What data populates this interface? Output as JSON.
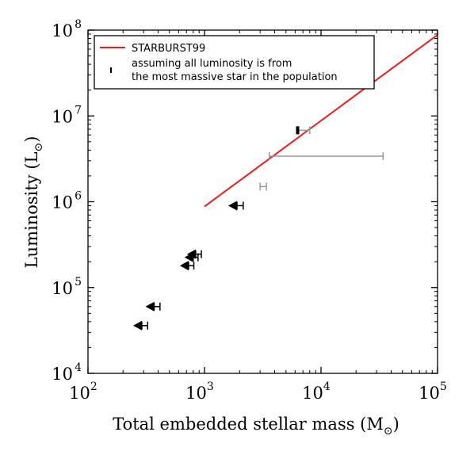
{
  "chart_data": {
    "type": "scatter",
    "title": "",
    "xlabel": "Total embedded stellar mass (M",
    "xlabel_sub": "⊙",
    "xlabel_close": ")",
    "ylabel": "Luminosity (L",
    "ylabel_sub": "⊙",
    "ylabel_close": ")",
    "xscale": "log",
    "yscale": "log",
    "xlim": [
      100,
      100000
    ],
    "ylim": [
      10000,
      100000000
    ],
    "grid": false,
    "legend_position": "top-left",
    "x_ticks": [
      {
        "value": 100,
        "base": "10",
        "exp": "2"
      },
      {
        "value": 1000,
        "base": "10",
        "exp": "3"
      },
      {
        "value": 10000,
        "base": "10",
        "exp": "4"
      },
      {
        "value": 100000,
        "base": "10",
        "exp": "5"
      }
    ],
    "y_ticks": [
      {
        "value": 10000,
        "base": "10",
        "exp": "4"
      },
      {
        "value": 100000,
        "base": "10",
        "exp": "5"
      },
      {
        "value": 1000000,
        "base": "10",
        "exp": "6"
      },
      {
        "value": 10000000,
        "base": "10",
        "exp": "7"
      },
      {
        "value": 100000000,
        "base": "10",
        "exp": "8"
      }
    ],
    "series": [
      {
        "name": "STARBURST99",
        "kind": "line",
        "color": "#ee1c1c",
        "x": [
          1000,
          100000
        ],
        "y": [
          880000,
          88000000
        ]
      },
      {
        "name": "assuming all luminosity is from\n the most massive star in the population",
        "kind": "errorbar",
        "color": "#000000",
        "points": [
          {
            "x": 290,
            "y": 36000,
            "xerr_low": 0,
            "xerr_high": 35,
            "marker": "left-arrow"
          },
          {
            "x": 370,
            "y": 60000,
            "xerr_low": 0,
            "xerr_high": 45,
            "marker": "left-arrow"
          },
          {
            "x": 730,
            "y": 180000,
            "xerr_low": 0,
            "xerr_high": 80,
            "marker": "left-arrow"
          },
          {
            "x": 800,
            "y": 225000,
            "xerr_low": 0,
            "xerr_high": 80,
            "marker": "left-arrow"
          },
          {
            "x": 840,
            "y": 245000,
            "xerr_low": 0,
            "xerr_high": 100,
            "marker": "left-arrow"
          },
          {
            "x": 1900,
            "y": 900000,
            "xerr_low": 0,
            "xerr_high": 250,
            "marker": "left-arrow"
          },
          {
            "x": 3000,
            "y": 1500000,
            "xerr_low": 0,
            "xerr_high": 400,
            "marker": "none",
            "bar_color": "#999999"
          },
          {
            "x": 3600,
            "y": 3400000,
            "xerr_low": 0,
            "xerr_high": 30500,
            "marker": "none",
            "bar_color": "#999999"
          },
          {
            "x": 6300,
            "y": 6800000,
            "xerr_low": 0,
            "xerr_high": 1700,
            "marker": "bar",
            "bar_color": "#999999"
          }
        ]
      }
    ]
  },
  "legend": {
    "entries": [
      {
        "label_lines": [
          "STARBURST99"
        ],
        "symbol": "line",
        "color": "#ee1c1c"
      },
      {
        "label_lines": [
          "assuming all luminosity is from",
          " the most massive star in the population"
        ],
        "symbol": "tick",
        "color": "#000000"
      }
    ]
  }
}
